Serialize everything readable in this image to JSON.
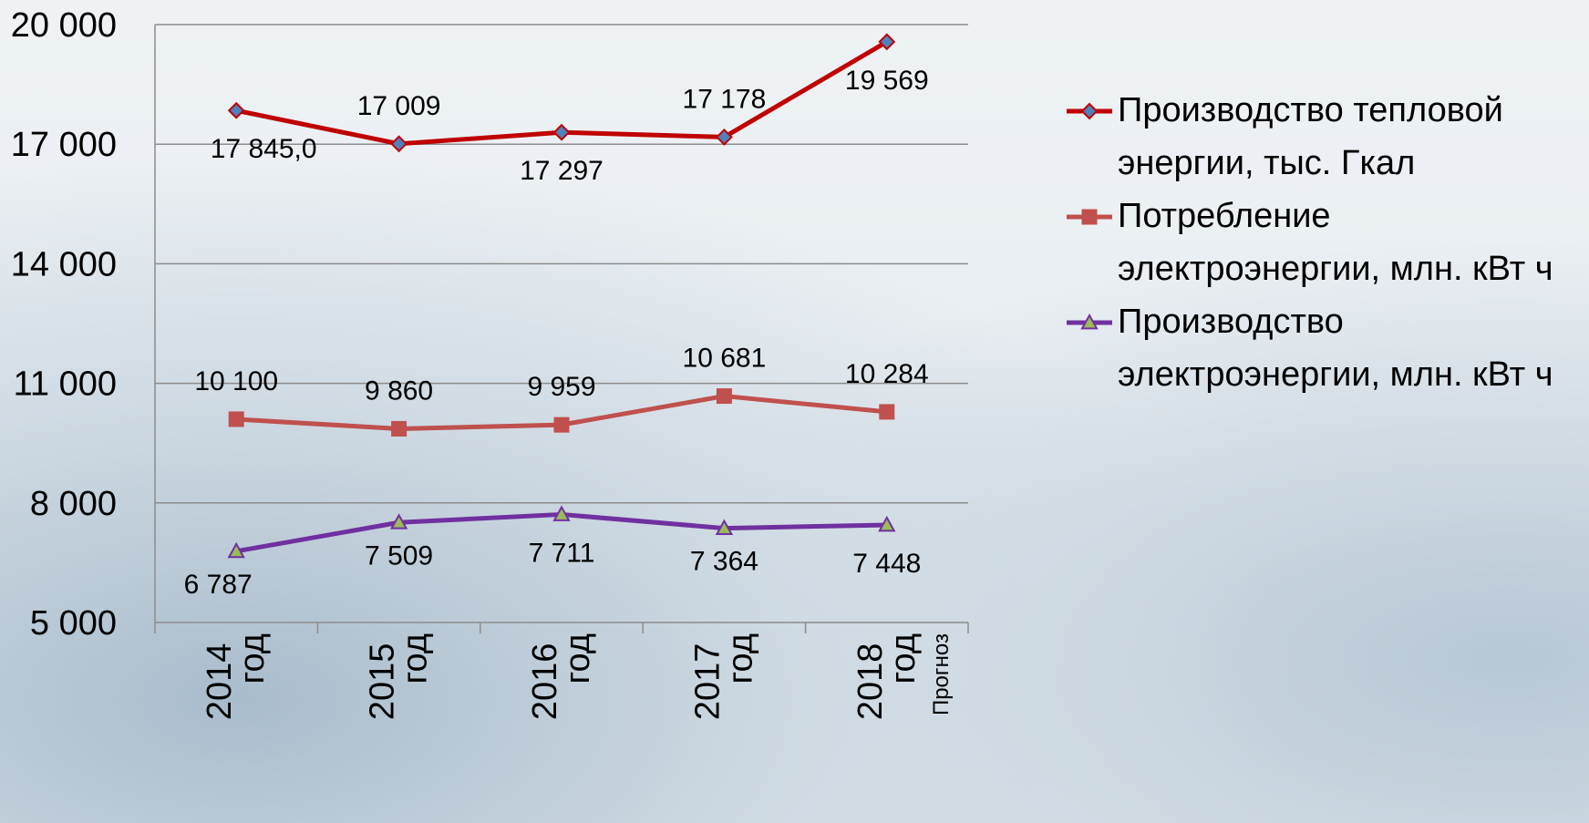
{
  "chart_data": {
    "type": "line",
    "categories": [
      "2014 год",
      "2015 год",
      "2016 год",
      "2017 год",
      "2018 год"
    ],
    "annotation": "Прогноз",
    "series": [
      {
        "name": "Производство тепловой энергии, тыс. Гкал",
        "color": "#c00000",
        "marker": "diamond",
        "marker_color": "#4f81bd",
        "values": [
          17845,
          17009,
          17297,
          17178,
          19569
        ],
        "value_labels": [
          "17 845,0",
          "17 009",
          "17 297",
          "17 178",
          "19 569"
        ]
      },
      {
        "name": "Потребление электроэнергии, млн. кВт ч",
        "color": "#c0504d",
        "marker": "square",
        "marker_color": "#c0504d",
        "values": [
          10100,
          9860,
          9959,
          10681,
          10284
        ],
        "value_labels": [
          "10 100",
          "9 860",
          "9 959",
          "10 681",
          "10 284"
        ]
      },
      {
        "name": "Производство электроэнергии, млн. кВт ч",
        "color": "#7030a0",
        "marker": "triangle",
        "marker_color": "#9bbb59",
        "values": [
          6787,
          7509,
          7711,
          7364,
          7448
        ],
        "value_labels": [
          "6 787",
          "7 509",
          "7 711",
          "7 364",
          "7 448"
        ]
      }
    ],
    "ylim": [
      5000,
      20000
    ],
    "yticks": [
      {
        "value": 5000,
        "label": "5 000"
      },
      {
        "value": 8000,
        "label": "8 000"
      },
      {
        "value": 11000,
        "label": "11 000"
      },
      {
        "value": 14000,
        "label": "14 000"
      },
      {
        "value": 17000,
        "label": "17 000"
      },
      {
        "value": 20000,
        "label": "20 000"
      }
    ],
    "grid": true
  }
}
